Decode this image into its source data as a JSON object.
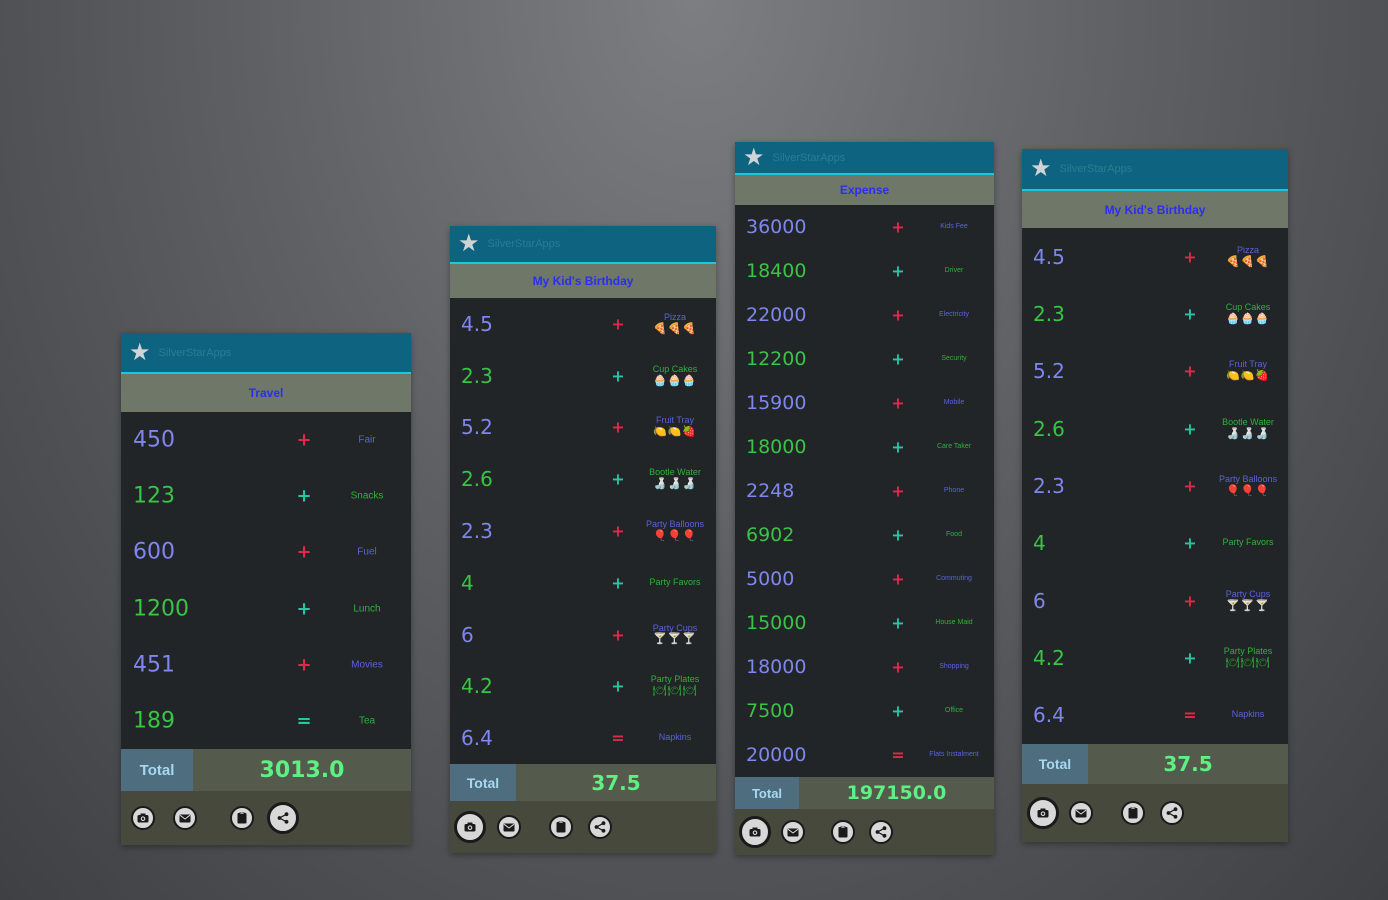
{
  "app_name": "SilverStarApps",
  "screens": [
    {
      "title": "Travel",
      "items": [
        {
          "value": "450",
          "op": "+",
          "label": "Fair",
          "icons": ""
        },
        {
          "value": "123",
          "op": "+",
          "label": "Snacks",
          "icons": ""
        },
        {
          "value": "600",
          "op": "+",
          "label": "Fuel",
          "icons": ""
        },
        {
          "value": "1200",
          "op": "+",
          "label": "Lunch",
          "icons": ""
        },
        {
          "value": "451",
          "op": "+",
          "label": "Movies",
          "icons": ""
        },
        {
          "value": "189",
          "op": "=",
          "label": "Tea",
          "icons": ""
        }
      ],
      "total_label": "Total",
      "total_value": "3013.0"
    },
    {
      "title": "My Kid's Birthday",
      "items": [
        {
          "value": "4.5",
          "op": "+",
          "label": "Pizza",
          "icons": "🍕🍕🍕"
        },
        {
          "value": "2.3",
          "op": "+",
          "label": "Cup Cakes",
          "icons": "🧁🧁🧁"
        },
        {
          "value": "5.2",
          "op": "+",
          "label": "Fruit Tray",
          "icons": "🍋🍋🍓"
        },
        {
          "value": "2.6",
          "op": "+",
          "label": "Bootle Water",
          "icons": "🍶🍶🍶"
        },
        {
          "value": "2.3",
          "op": "+",
          "label": "Party Balloons",
          "icons": "🎈🎈🎈"
        },
        {
          "value": "4",
          "op": "+",
          "label": "Party Favors",
          "icons": ""
        },
        {
          "value": "6",
          "op": "+",
          "label": "Party Cups",
          "icons": "🍸🍸🍸"
        },
        {
          "value": "4.2",
          "op": "+",
          "label": "Party Plates",
          "icons": "🍽🍽🍽"
        },
        {
          "value": "6.4",
          "op": "=",
          "label": "Napkins",
          "icons": ""
        }
      ],
      "total_label": "Total",
      "total_value": "37.5"
    },
    {
      "title": "Expense",
      "items": [
        {
          "value": "36000",
          "op": "+",
          "label": "Kids Fee",
          "icons": ""
        },
        {
          "value": "18400",
          "op": "+",
          "label": "Driver",
          "icons": ""
        },
        {
          "value": "22000",
          "op": "+",
          "label": "Electricity",
          "icons": ""
        },
        {
          "value": "12200",
          "op": "+",
          "label": "Security",
          "icons": ""
        },
        {
          "value": "15900",
          "op": "+",
          "label": "Mobile",
          "icons": ""
        },
        {
          "value": "18000",
          "op": "+",
          "label": "Care Taker",
          "icons": ""
        },
        {
          "value": "2248",
          "op": "+",
          "label": "Phone",
          "icons": ""
        },
        {
          "value": "6902",
          "op": "+",
          "label": "Food",
          "icons": ""
        },
        {
          "value": "5000",
          "op": "+",
          "label": "Commuting",
          "icons": ""
        },
        {
          "value": "15000",
          "op": "+",
          "label": "House Maid",
          "icons": ""
        },
        {
          "value": "18000",
          "op": "+",
          "label": "Shopping",
          "icons": ""
        },
        {
          "value": "7500",
          "op": "+",
          "label": "Office",
          "icons": ""
        },
        {
          "value": "20000",
          "op": "=",
          "label": "Flats Instalment",
          "icons": ""
        }
      ],
      "total_label": "Total",
      "total_value": "197150.0"
    },
    {
      "title": "My Kid's Birthday",
      "items": [
        {
          "value": "4.5",
          "op": "+",
          "label": "Pizza",
          "icons": "🍕🍕🍕"
        },
        {
          "value": "2.3",
          "op": "+",
          "label": "Cup Cakes",
          "icons": "🧁🧁🧁"
        },
        {
          "value": "5.2",
          "op": "+",
          "label": "Fruit Tray",
          "icons": "🍋🍋🍓"
        },
        {
          "value": "2.6",
          "op": "+",
          "label": "Bootle Water",
          "icons": "🍶🍶🍶"
        },
        {
          "value": "2.3",
          "op": "+",
          "label": "Party Balloons",
          "icons": "🎈🎈🎈"
        },
        {
          "value": "4",
          "op": "+",
          "label": "Party Favors",
          "icons": ""
        },
        {
          "value": "6",
          "op": "+",
          "label": "Party Cups",
          "icons": "🍸🍸🍸"
        },
        {
          "value": "4.2",
          "op": "+",
          "label": "Party Plates",
          "icons": "🍽🍽🍽"
        },
        {
          "value": "6.4",
          "op": "=",
          "label": "Napkins",
          "icons": ""
        }
      ],
      "total_label": "Total",
      "total_value": "37.5"
    }
  ],
  "footer_icons": [
    "camera-icon",
    "mail-icon",
    "clipboard-icon",
    "share-icon"
  ],
  "colors": {
    "appbar": "#0e6480",
    "titlebar": "#6f7868",
    "list_bg": "#222528",
    "value_blue": "#7f86ee",
    "value_green": "#39c445",
    "op_red": "#e0284a",
    "op_teal": "#22c8a4",
    "total_value": "#5ef082"
  }
}
